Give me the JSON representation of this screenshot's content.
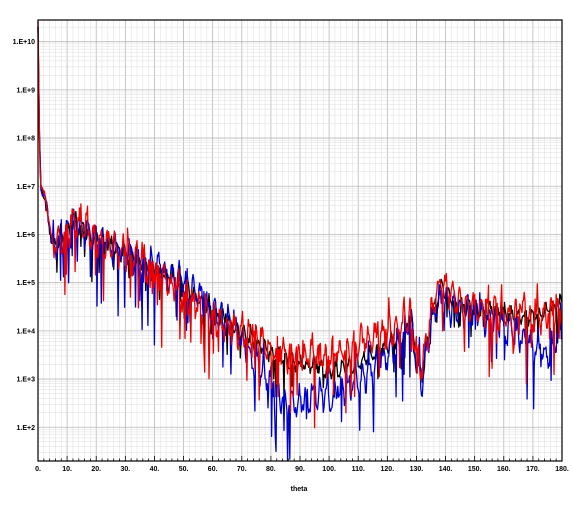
{
  "chart_data": {
    "type": "line",
    "xlabel": "theta",
    "ylabel": "",
    "xlim": [
      0,
      180
    ],
    "ylim_log10": [
      1.3,
      10.45
    ],
    "y_scale": "log",
    "grid": "major and minor",
    "x_ticks": [
      0,
      10,
      20,
      30,
      40,
      50,
      60,
      70,
      80,
      90,
      100,
      110,
      120,
      130,
      140,
      150,
      160,
      170,
      180
    ],
    "x_tick_labels": [
      "0.",
      "10.",
      "20.",
      "30.",
      "40.",
      "50.",
      "60.",
      "70.",
      "80.",
      "90.",
      "100.",
      "110.",
      "120.",
      "130.",
      "140.",
      "150.",
      "160.",
      "170.",
      "180."
    ],
    "y_ticks_log10": [
      2,
      3,
      4,
      5,
      6,
      7,
      8,
      9,
      10
    ],
    "y_tick_labels": [
      "1.E+2",
      "1.E+3",
      "1.E+4",
      "1.E+5",
      "1.E+6",
      "1.E+7",
      "1.E+8",
      "1.E+9",
      "1.E+10"
    ],
    "series": [
      {
        "color": "#000000",
        "x": [
          0,
          0.5,
          1,
          2,
          3,
          4,
          5,
          6,
          8,
          10,
          12,
          14,
          16,
          18,
          20,
          25,
          30,
          35,
          40,
          45,
          50,
          55,
          60,
          65,
          70,
          75,
          80,
          85,
          90,
          95,
          100,
          105,
          110,
          115,
          120,
          125,
          128,
          130,
          132,
          135,
          137,
          139,
          142,
          145,
          150,
          155,
          160,
          165,
          170,
          175,
          180
        ],
        "y": [
          10.3,
          8.0,
          7.0,
          6.8,
          6.6,
          6.2,
          5.7,
          5.85,
          5.85,
          6.0,
          6.15,
          6.2,
          6.1,
          5.95,
          5.9,
          5.75,
          5.6,
          5.45,
          5.3,
          5.1,
          4.9,
          4.7,
          4.4,
          4.2,
          3.95,
          3.7,
          3.55,
          3.4,
          3.25,
          3.3,
          3.15,
          3.25,
          3.35,
          3.5,
          3.7,
          3.85,
          4.2,
          3.4,
          3.1,
          4.2,
          4.7,
          4.95,
          4.65,
          4.5,
          4.45,
          4.4,
          4.35,
          4.3,
          4.3,
          4.4,
          4.6
        ],
        "noise": 0.22
      },
      {
        "color": "#0000cc",
        "x": [
          0,
          0.5,
          1,
          2,
          3,
          4,
          5,
          6,
          8,
          10,
          12,
          14,
          16,
          18,
          20,
          25,
          30,
          35,
          40,
          45,
          50,
          55,
          60,
          65,
          70,
          75,
          80,
          85,
          90,
          95,
          100,
          105,
          110,
          115,
          120,
          125,
          128,
          130,
          132,
          135,
          137,
          139,
          142,
          145,
          150,
          155,
          160,
          165,
          170,
          175,
          180
        ],
        "y": [
          10.3,
          8.0,
          7.0,
          6.8,
          6.6,
          6.2,
          5.7,
          5.85,
          5.85,
          6.0,
          6.15,
          6.2,
          6.1,
          5.95,
          5.9,
          5.75,
          5.6,
          5.45,
          5.35,
          5.15,
          5.0,
          4.75,
          4.45,
          4.2,
          3.8,
          3.3,
          2.9,
          2.55,
          2.5,
          2.7,
          2.6,
          2.75,
          2.95,
          3.2,
          3.5,
          3.8,
          4.2,
          3.3,
          3.0,
          4.1,
          4.6,
          4.6,
          4.45,
          4.4,
          4.4,
          4.2,
          4.05,
          3.9,
          3.75,
          3.5,
          4.0
        ],
        "noise": 0.42
      },
      {
        "color": "#ee0000",
        "x": [
          0,
          0.5,
          1,
          2,
          3,
          4,
          5,
          6,
          8,
          10,
          12,
          14,
          16,
          18,
          20,
          25,
          30,
          35,
          40,
          45,
          50,
          55,
          60,
          65,
          70,
          75,
          80,
          85,
          90,
          95,
          100,
          105,
          110,
          115,
          120,
          125,
          128,
          130,
          132,
          135,
          137,
          139,
          142,
          145,
          150,
          155,
          160,
          165,
          170,
          175,
          180
        ],
        "y": [
          10.35,
          8.1,
          7.1,
          6.8,
          6.6,
          6.2,
          5.75,
          5.85,
          5.85,
          6.05,
          6.2,
          6.25,
          6.15,
          6.0,
          5.9,
          5.75,
          5.6,
          5.4,
          5.2,
          4.95,
          4.7,
          4.5,
          4.3,
          4.1,
          3.95,
          3.8,
          3.6,
          3.5,
          3.45,
          3.55,
          3.5,
          3.55,
          3.75,
          3.85,
          3.95,
          4.1,
          4.35,
          3.6,
          3.2,
          4.3,
          4.8,
          5.05,
          4.75,
          4.55,
          4.45,
          4.4,
          4.3,
          4.3,
          4.25,
          4.3,
          4.5
        ],
        "noise": 0.4
      }
    ]
  }
}
